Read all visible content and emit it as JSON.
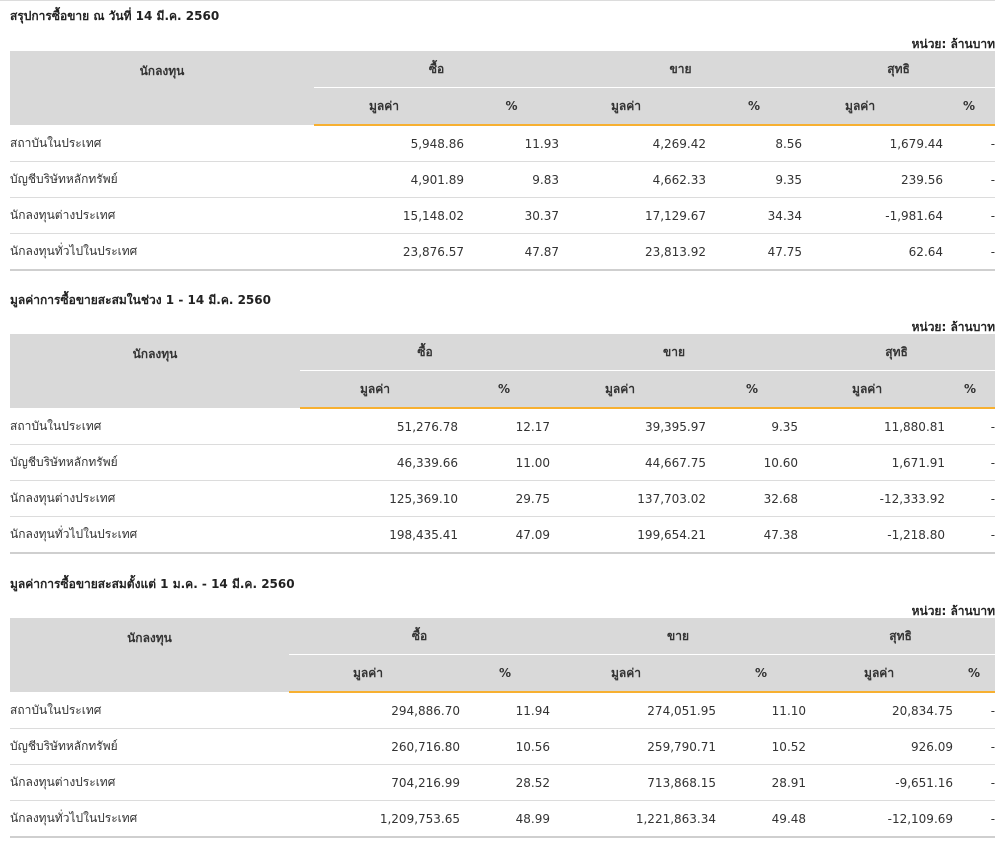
{
  "unit_label": "หน่วย: ล้านบาท",
  "headers": {
    "investor": "นักลงทุน",
    "buy": "ซื้อ",
    "sell": "ขาย",
    "net": "สุทธิ",
    "value": "มูลค่า",
    "pct": "%"
  },
  "colors": {
    "positive": "#3c8d2f",
    "negative": "#e0171f",
    "accent_line": "#f7b031",
    "header_bg": "#d9d9d9"
  },
  "sections": [
    {
      "title": "สรุปการซื้อขาย ณ วันที่ 14 มี.ค. 2560",
      "rows": [
        {
          "name": "สถาบันในประเทศ",
          "buy_value": "5,948.86",
          "buy_pct": "11.93",
          "sell_value": "4,269.42",
          "sell_pct": "8.56",
          "net_value": "1,679.44",
          "net_pct": "-",
          "net_sign": "pos"
        },
        {
          "name": "บัญชีบริษัทหลักทรัพย์",
          "buy_value": "4,901.89",
          "buy_pct": "9.83",
          "sell_value": "4,662.33",
          "sell_pct": "9.35",
          "net_value": "239.56",
          "net_pct": "-",
          "net_sign": "pos"
        },
        {
          "name": "นักลงทุนต่างประเทศ",
          "buy_value": "15,148.02",
          "buy_pct": "30.37",
          "sell_value": "17,129.67",
          "sell_pct": "34.34",
          "net_value": "-1,981.64",
          "net_pct": "-",
          "net_sign": "neg"
        },
        {
          "name": "นักลงทุนทั่วไปในประเทศ",
          "buy_value": "23,876.57",
          "buy_pct": "47.87",
          "sell_value": "23,813.92",
          "sell_pct": "47.75",
          "net_value": "62.64",
          "net_pct": "-",
          "net_sign": "pos"
        }
      ]
    },
    {
      "title": "มูลค่าการซื้อขายสะสมในช่วง 1 - 14 มี.ค. 2560",
      "rows": [
        {
          "name": "สถาบันในประเทศ",
          "buy_value": "51,276.78",
          "buy_pct": "12.17",
          "sell_value": "39,395.97",
          "sell_pct": "9.35",
          "net_value": "11,880.81",
          "net_pct": "-",
          "net_sign": "pos"
        },
        {
          "name": "บัญชีบริษัทหลักทรัพย์",
          "buy_value": "46,339.66",
          "buy_pct": "11.00",
          "sell_value": "44,667.75",
          "sell_pct": "10.60",
          "net_value": "1,671.91",
          "net_pct": "-",
          "net_sign": "pos"
        },
        {
          "name": "นักลงทุนต่างประเทศ",
          "buy_value": "125,369.10",
          "buy_pct": "29.75",
          "sell_value": "137,703.02",
          "sell_pct": "32.68",
          "net_value": "-12,333.92",
          "net_pct": "-",
          "net_sign": "neg"
        },
        {
          "name": "นักลงทุนทั่วไปในประเทศ",
          "buy_value": "198,435.41",
          "buy_pct": "47.09",
          "sell_value": "199,654.21",
          "sell_pct": "47.38",
          "net_value": "-1,218.80",
          "net_pct": "-",
          "net_sign": "neg"
        }
      ]
    },
    {
      "title": "มูลค่าการซื้อขายสะสมตั้งแต่ 1 ม.ค. - 14 มี.ค. 2560",
      "rows": [
        {
          "name": "สถาบันในประเทศ",
          "buy_value": "294,886.70",
          "buy_pct": "11.94",
          "sell_value": "274,051.95",
          "sell_pct": "11.10",
          "net_value": "20,834.75",
          "net_pct": "-",
          "net_sign": "pos"
        },
        {
          "name": "บัญชีบริษัทหลักทรัพย์",
          "buy_value": "260,716.80",
          "buy_pct": "10.56",
          "sell_value": "259,790.71",
          "sell_pct": "10.52",
          "net_value": "926.09",
          "net_pct": "-",
          "net_sign": "pos"
        },
        {
          "name": "นักลงทุนต่างประเทศ",
          "buy_value": "704,216.99",
          "buy_pct": "28.52",
          "sell_value": "713,868.15",
          "sell_pct": "28.91",
          "net_value": "-9,651.16",
          "net_pct": "-",
          "net_sign": "neg"
        },
        {
          "name": "นักลงทุนทั่วไปในประเทศ",
          "buy_value": "1,209,753.65",
          "buy_pct": "48.99",
          "sell_value": "1,221,863.34",
          "sell_pct": "49.48",
          "net_value": "-12,109.69",
          "net_pct": "-",
          "net_sign": "neg"
        }
      ]
    }
  ]
}
